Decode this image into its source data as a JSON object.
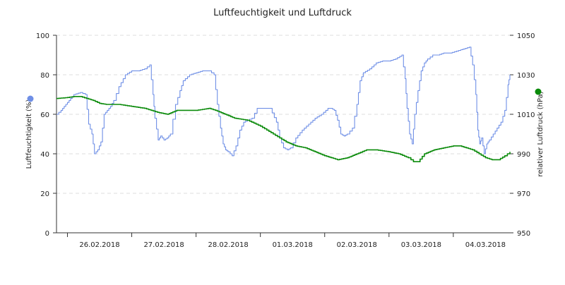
{
  "chart_data": {
    "type": "line",
    "title": "Luftfeuchtigkeit und Luftdruck",
    "xlabel": "",
    "x_tick_labels": [
      "26.02.2018",
      "27.02.2018",
      "28.02.2018",
      "01.03.2018",
      "02.03.2018",
      "03.03.2018",
      "04.03.2018"
    ],
    "x_range_days": [
      -0.17,
      6.88
    ],
    "grid": true,
    "legend": "axis-label dots",
    "axes": {
      "left": {
        "label": "Luftfeuchtigkeit (%)",
        "ylim": [
          0,
          100
        ],
        "ticks": [
          "0",
          "20",
          "40",
          "60",
          "80",
          "100"
        ],
        "color": "#6f8fe6"
      },
      "right": {
        "label": "relativer Luftdruck (hPa)",
        "ylim": [
          950,
          1050
        ],
        "ticks": [
          "950",
          "970",
          "990",
          "1010",
          "1030",
          "1050"
        ],
        "color": "#0a8a0a"
      }
    },
    "series": [
      {
        "name": "Luftfeuchtigkeit (%)",
        "axis": "left",
        "color": "#6f8fe6",
        "x": [
          -0.17,
          -0.1,
          -0.05,
          0.0,
          0.05,
          0.1,
          0.2,
          0.28,
          0.33,
          0.38,
          0.42,
          0.47,
          0.52,
          0.57,
          0.62,
          0.67,
          0.72,
          0.8,
          0.9,
          1.0,
          1.1,
          1.2,
          1.28,
          1.33,
          1.36,
          1.41,
          1.45,
          1.5,
          1.55,
          1.6,
          1.68,
          1.75,
          1.8,
          1.9,
          2.0,
          2.1,
          2.2,
          2.28,
          2.33,
          2.38,
          2.42,
          2.46,
          2.5,
          2.56,
          2.62,
          2.68,
          2.74,
          2.8,
          2.87,
          2.95,
          3.05,
          3.15,
          3.25,
          3.3,
          3.36,
          3.42,
          3.47,
          3.55,
          3.65,
          3.75,
          3.85,
          3.95,
          4.05,
          4.1,
          4.15,
          4.2,
          4.25,
          4.3,
          4.35,
          4.43,
          4.5,
          4.55,
          4.6,
          4.7,
          4.8,
          4.9,
          5.0,
          5.1,
          5.2,
          5.25,
          5.28,
          5.32,
          5.36,
          5.4,
          5.45,
          5.5,
          5.55,
          5.6,
          5.68,
          5.76,
          5.85,
          5.95,
          6.05,
          6.15,
          6.25,
          6.3,
          6.35,
          6.38,
          6.41,
          6.44,
          6.48,
          6.52,
          6.56,
          6.62,
          6.68,
          6.74,
          6.8,
          6.85,
          6.88
        ],
        "values": [
          60,
          62,
          64,
          66,
          68,
          70,
          71,
          70,
          55,
          50,
          40,
          42,
          46,
          60,
          62,
          64,
          67,
          74,
          80,
          82,
          82,
          83,
          85,
          70,
          58,
          47,
          49,
          47,
          48,
          50,
          65,
          72,
          77,
          80,
          81,
          82,
          82,
          80,
          65,
          53,
          45,
          42,
          41,
          39,
          44,
          52,
          56,
          57,
          58,
          63,
          63,
          63,
          56,
          48,
          43,
          42,
          43,
          48,
          52,
          55,
          58,
          60,
          63,
          63,
          62,
          57,
          50,
          49,
          50,
          53,
          65,
          77,
          81,
          83,
          86,
          87,
          87,
          88,
          90,
          78,
          63,
          50,
          45,
          60,
          72,
          82,
          86,
          88,
          90,
          90,
          91,
          91,
          92,
          93,
          94,
          85,
          70,
          52,
          45,
          48,
          40,
          45,
          47,
          50,
          53,
          56,
          62,
          75,
          80
        ]
      },
      {
        "name": "relativer Luftdruck (hPa)",
        "axis": "right",
        "color": "#0a8a0a",
        "x": [
          -0.17,
          0.0,
          0.1,
          0.2,
          0.3,
          0.4,
          0.5,
          0.6,
          0.8,
          1.0,
          1.2,
          1.4,
          1.55,
          1.7,
          1.8,
          2.0,
          2.2,
          2.3,
          2.45,
          2.6,
          2.8,
          3.0,
          3.2,
          3.4,
          3.55,
          3.7,
          3.85,
          4.0,
          4.2,
          4.35,
          4.5,
          4.65,
          4.8,
          5.0,
          5.15,
          5.3,
          5.38,
          5.45,
          5.55,
          5.7,
          5.85,
          6.0,
          6.1,
          6.2,
          6.3,
          6.4,
          6.5,
          6.6,
          6.7,
          6.8,
          6.88
        ],
        "values": [
          1018,
          1018.5,
          1019,
          1019,
          1018,
          1017,
          1015.5,
          1015,
          1015,
          1014,
          1013,
          1011,
          1010,
          1012,
          1012,
          1012,
          1013,
          1012,
          1010,
          1008,
          1007,
          1004,
          1000,
          996,
          994,
          993,
          991,
          989,
          987,
          988,
          990,
          992,
          992,
          991,
          990,
          988,
          986,
          986,
          990,
          992,
          993,
          994,
          994,
          993,
          992,
          990,
          988,
          987,
          987,
          989,
          991
        ]
      }
    ]
  }
}
